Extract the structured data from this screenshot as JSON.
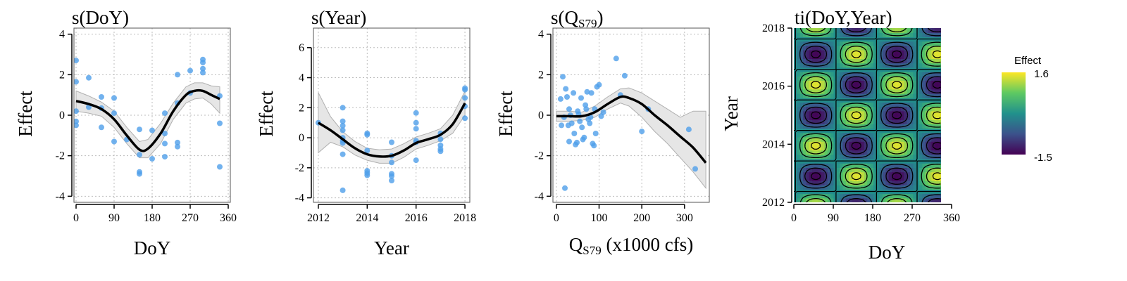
{
  "colors": {
    "point": "#4f9fea",
    "fit_line": "#000000",
    "ci_band": "#e6e6e6",
    "ci_border": "#b0b0b0",
    "grid": "#bdbdbd",
    "panel_border": "#000000"
  },
  "colorscale": {
    "name": "viridis",
    "stops": [
      "#440154",
      "#3b528b",
      "#21918c",
      "#5ec962",
      "#fde725"
    ]
  },
  "legend": {
    "title": "Effect",
    "max_label": "1.6",
    "min_label": "-1.5",
    "max": 1.6,
    "min": -1.5
  },
  "chart_data": [
    {
      "type": "line",
      "title": "s(DoY)",
      "xlabel": "DoY",
      "ylabel": "Effect",
      "xlim": [
        -5,
        365
      ],
      "ylim": [
        -4.3,
        4.3
      ],
      "xticks": [
        0,
        90,
        180,
        270,
        360
      ],
      "yticks": [
        -4,
        -2,
        0,
        2,
        4
      ],
      "fit": {
        "x": [
          0,
          30,
          60,
          90,
          120,
          150,
          170,
          200,
          230,
          260,
          280,
          300,
          320,
          340
        ],
        "y": [
          0.7,
          0.55,
          0.3,
          -0.2,
          -1.0,
          -1.7,
          -1.65,
          -0.9,
          0.2,
          1.0,
          1.2,
          1.2,
          1.0,
          0.8
        ],
        "lower": [
          0.2,
          0.1,
          -0.05,
          -0.6,
          -1.4,
          -2.1,
          -2.1,
          -1.4,
          -0.2,
          0.6,
          0.8,
          0.85,
          0.55,
          0.1
        ],
        "upper": [
          1.2,
          0.95,
          0.65,
          0.2,
          -0.6,
          -1.3,
          -1.2,
          -0.4,
          0.6,
          1.4,
          1.6,
          1.6,
          1.45,
          1.4
        ]
      },
      "points": {
        "x": [
          0,
          0,
          0,
          0,
          0,
          30,
          30,
          60,
          60,
          60,
          90,
          90,
          90,
          120,
          150,
          150,
          150,
          150,
          180,
          180,
          210,
          210,
          210,
          210,
          240,
          240,
          240,
          240,
          270,
          270,
          300,
          300,
          300,
          300,
          340,
          340,
          340
        ],
        "y": [
          2.7,
          1.65,
          0.2,
          -0.3,
          -0.5,
          1.85,
          0.4,
          0.9,
          0.35,
          -0.6,
          0.85,
          0.1,
          -1.3,
          -1.2,
          -0.7,
          -1.95,
          -2.8,
          -2.9,
          -0.75,
          -2.15,
          0.1,
          -0.9,
          -1.4,
          -2.05,
          2.0,
          0.6,
          -1.35,
          -1.55,
          2.2,
          1.1,
          2.75,
          2.6,
          2.3,
          2.1,
          0.95,
          -0.4,
          -2.55
        ]
      }
    },
    {
      "type": "line",
      "title": "s(Year)",
      "xlabel": "Year",
      "ylabel": "Effect",
      "xlim": [
        2011.8,
        2018.2
      ],
      "ylim": [
        -4.3,
        7.3
      ],
      "xticks": [
        2012,
        2014,
        2016,
        2018
      ],
      "yticks": [
        -4,
        -2,
        0,
        2,
        4,
        6
      ],
      "fit": {
        "x": [
          2012,
          2012.5,
          2013,
          2013.5,
          2014,
          2014.5,
          2015,
          2015.5,
          2016,
          2016.5,
          2017,
          2017.5,
          2018
        ],
        "y": [
          1.0,
          0.5,
          -0.1,
          -0.7,
          -1.1,
          -1.25,
          -1.2,
          -0.85,
          -0.35,
          -0.1,
          0.2,
          0.9,
          2.3
        ],
        "lower": [
          -1.0,
          -0.3,
          -0.6,
          -1.15,
          -1.5,
          -1.7,
          -1.7,
          -1.3,
          -0.75,
          -0.5,
          -0.2,
          0.3,
          1.5
        ],
        "upper": [
          3.0,
          1.4,
          0.4,
          -0.25,
          -0.7,
          -0.8,
          -0.75,
          -0.4,
          0.05,
          0.3,
          0.6,
          1.5,
          3.1
        ]
      },
      "points": {
        "x": [
          2012,
          2013,
          2013,
          2013,
          2013,
          2013,
          2013,
          2013,
          2013,
          2013,
          2014,
          2014,
          2014,
          2014,
          2014,
          2014,
          2015,
          2015,
          2015,
          2015,
          2015,
          2015,
          2016,
          2016,
          2016,
          2016,
          2016,
          2016,
          2017,
          2017,
          2017,
          2017,
          2017,
          2018,
          2018,
          2018,
          2018,
          2018
        ],
        "y": [
          1.0,
          2.0,
          1.1,
          0.8,
          0.5,
          0.0,
          -0.2,
          -0.35,
          -1.1,
          -3.5,
          0.3,
          0.2,
          -0.85,
          -2.2,
          -2.35,
          -2.5,
          -0.3,
          -1.2,
          -1.65,
          -2.4,
          -2.55,
          -2.85,
          1.65,
          1.0,
          0.6,
          -0.2,
          -0.3,
          -1.5,
          0.3,
          -0.1,
          -0.5,
          -0.75,
          -0.9,
          3.3,
          3.2,
          2.65,
          2.1,
          1.3
        ]
      }
    },
    {
      "type": "line",
      "title": "s(Q",
      "title_sub": "S79",
      "title_end": ")",
      "xlabel": "Q",
      "xlabel_sub": "S79",
      "xlabel_end": " (x1000 cfs)",
      "ylabel": "Effect",
      "xlim": [
        -8,
        358
      ],
      "ylim": [
        -4.3,
        4.3
      ],
      "xticks": [
        0,
        100,
        200,
        300
      ],
      "yticks": [
        -4,
        -2,
        0,
        2,
        4
      ],
      "fit": {
        "x": [
          0,
          30,
          60,
          90,
          120,
          150,
          170,
          200,
          230,
          260,
          290,
          320,
          350
        ],
        "y": [
          -0.05,
          -0.05,
          -0.05,
          0.15,
          0.55,
          0.9,
          0.85,
          0.55,
          0.0,
          -0.5,
          -1.05,
          -1.6,
          -2.35
        ],
        "lower": [
          -0.3,
          -0.3,
          -0.25,
          -0.1,
          0.3,
          0.6,
          0.45,
          -0.1,
          -0.8,
          -1.4,
          -2.1,
          -2.8,
          -3.6
        ],
        "upper": [
          0.2,
          0.2,
          0.15,
          0.45,
          0.9,
          1.3,
          1.35,
          1.1,
          0.7,
          0.3,
          -0.1,
          0.2,
          0.2
        ]
      },
      "points": {
        "x": [
          15,
          18,
          22,
          25,
          28,
          30,
          33,
          36,
          40,
          42,
          45,
          48,
          50,
          52,
          55,
          58,
          60,
          62,
          65,
          68,
          70,
          72,
          75,
          78,
          80,
          82,
          85,
          88,
          90,
          92,
          95,
          100,
          105,
          110,
          140,
          150,
          160,
          200,
          215,
          310,
          325,
          20,
          30,
          12,
          10
        ],
        "y": [
          1.9,
          -0.1,
          1.3,
          0.9,
          -0.5,
          -1.3,
          0.0,
          -0.4,
          1.1,
          -0.9,
          -1.45,
          -1.35,
          0.2,
          0.05,
          -0.3,
          0.85,
          -0.6,
          -1.2,
          -1.1,
          0.5,
          0.3,
          1.15,
          -0.2,
          -0.4,
          -0.1,
          1.1,
          -1.4,
          -1.5,
          0.3,
          -0.9,
          1.4,
          1.5,
          -0.05,
          0.15,
          2.8,
          1.0,
          1.95,
          -0.8,
          0.3,
          -0.7,
          -2.65,
          -3.6,
          0.3,
          -0.5,
          0.8
        ]
      }
    },
    {
      "type": "heatmap",
      "title": "ti(DoY,Year)",
      "xlabel": "DoY",
      "ylabel": "Year",
      "xlim": [
        0,
        360
      ],
      "ylim": [
        2012,
        2018
      ],
      "data_xmax": 335,
      "xticks": [
        0,
        90,
        180,
        270,
        360
      ],
      "yticks": [
        2012,
        2014,
        2016,
        2018
      ],
      "value_range": [
        -1.5,
        1.6
      ],
      "surface": {
        "form": "A * cos(2*pi*(doy-50)/185) * cos(2*pi*(year-2015)/2.1)",
        "A": -1.5,
        "doy_center": 50,
        "doy_period": 185,
        "year_center": 2015,
        "year_period": 2.1
      },
      "contour_levels": [
        -1.4,
        -1.0,
        -0.5,
        0.0,
        0.5,
        1.0,
        1.4
      ]
    }
  ]
}
